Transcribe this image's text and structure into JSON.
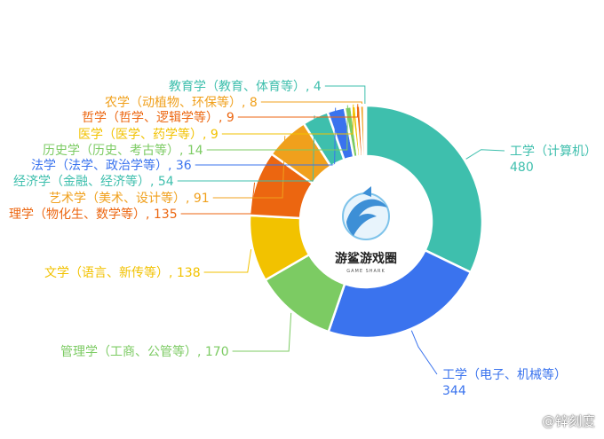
{
  "chart_data": {
    "type": "pie",
    "title": "",
    "slices": [
      {
        "label": "工学（计算机）",
        "value": 480,
        "color": "#3ebfad"
      },
      {
        "label": "工学（电子、机械等）",
        "value": 344,
        "color": "#3a73ee"
      },
      {
        "label": "管理学（工商、公管等）",
        "value": 170,
        "color": "#7ccb63"
      },
      {
        "label": "文学（语言、新传等）",
        "value": 138,
        "color": "#f2c200"
      },
      {
        "label": "理学（物化生、数学等）",
        "value": 135,
        "color": "#ec6610"
      },
      {
        "label": "艺术学（美术、设计等）",
        "value": 91,
        "color": "#f0a01c"
      },
      {
        "label": "经济学（金融、经济等）",
        "value": 54,
        "color": "#3ebfad"
      },
      {
        "label": "法学（法学、政治学等）",
        "value": 36,
        "color": "#3a73ee"
      },
      {
        "label": "历史学（历史、考古等）",
        "value": 14,
        "color": "#7ccb63"
      },
      {
        "label": "医学（医学、药学等）",
        "value": 9,
        "color": "#f2c200"
      },
      {
        "label": "哲学（哲学、逻辑学等）",
        "value": 9,
        "color": "#ec6610"
      },
      {
        "label": "农学（动植物、环保等）",
        "value": 8,
        "color": "#f0a01c"
      },
      {
        "label": "教育学（教育、体育等）",
        "value": 4,
        "color": "#3ebfad"
      }
    ]
  },
  "logo": {
    "name": "游鲨游戏圈",
    "subtitle": "GAME SHARK"
  },
  "watermark": "@锌刻度"
}
